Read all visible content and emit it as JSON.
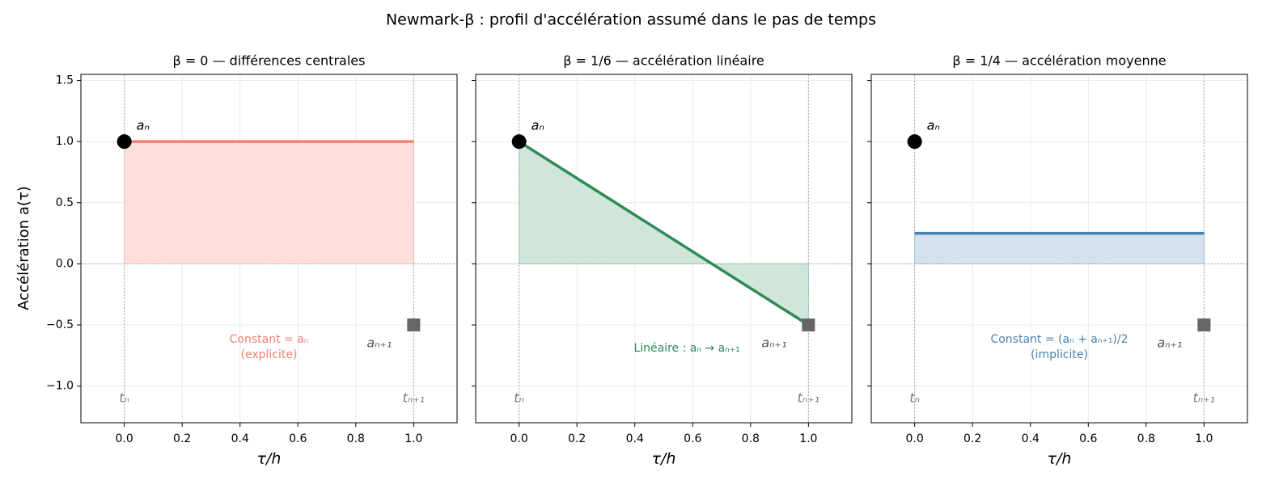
{
  "title": "Newmark-β : profil d'accélération assumé dans le pas de temps",
  "chart_data": [
    {
      "type": "line",
      "title": "β = 0 — différences centrales",
      "xlabel": "τ/h",
      "ylabel": "Accélération a(τ)",
      "x": [
        0,
        1
      ],
      "values": [
        1,
        1
      ],
      "color": "#f08070",
      "fill_color": "#fde0dc",
      "xlim": [
        -0.15,
        1.15
      ],
      "ylim": [
        -1.3,
        1.55
      ],
      "xticks": [
        {
          "value": 0,
          "label": "0.0"
        },
        0.2,
        0.4,
        0.6,
        0.8,
        {
          "value": 1,
          "label": "1.0"
        }
      ],
      "yticks": [
        {
          "value": -1,
          "label": "−1.0"
        },
        {
          "value": -0.5,
          "label": "−0.5"
        },
        {
          "value": 0,
          "label": "0.0"
        },
        0.5,
        {
          "value": 1,
          "label": "1.0"
        },
        1.5
      ],
      "grid": true,
      "points": [
        {
          "label": "aₙ",
          "x": 0,
          "y": 1,
          "marker": "circle",
          "color": "#000000"
        },
        {
          "label": "aₙ₊₁",
          "x": 1,
          "y": -0.5,
          "marker": "square",
          "color": "#666666"
        }
      ],
      "time_labels": [
        {
          "text": "tₙ",
          "x": 0,
          "y": -1.1
        },
        {
          "text": "tₙ₊₁",
          "x": 1,
          "y": -1.1
        }
      ],
      "annotation": {
        "lines": [
          "Constant  = aₙ",
          "(explicite)"
        ],
        "x": 0.5,
        "y": -0.62
      }
    },
    {
      "type": "line",
      "title": "β = 1/6 — accélération linéaire",
      "xlabel": "τ/h",
      "x": [
        0,
        1
      ],
      "values": [
        1,
        -0.5
      ],
      "color": "#2e8b57",
      "fill_color": "#d0e6d9",
      "xlim": [
        -0.15,
        1.15
      ],
      "ylim": [
        -1.3,
        1.55
      ],
      "xticks": [
        {
          "value": 0,
          "label": "0.0"
        },
        0.2,
        0.4,
        0.6,
        0.8,
        {
          "value": 1,
          "label": "1.0"
        }
      ],
      "yticks": [
        -1,
        -0.5,
        0,
        0.5,
        1,
        1.5
      ],
      "ytick_labels": false,
      "grid": true,
      "points": [
        {
          "label": "aₙ",
          "x": 0,
          "y": 1,
          "marker": "circle",
          "color": "#000000"
        },
        {
          "label": "aₙ₊₁",
          "x": 1,
          "y": -0.5,
          "marker": "square",
          "color": "#666666"
        }
      ],
      "time_labels": [
        {
          "text": "tₙ",
          "x": 0,
          "y": -1.1
        },
        {
          "text": "tₙ₊₁",
          "x": 1,
          "y": -1.1
        }
      ],
      "annotation": {
        "lines": [
          "Linéaire : aₙ → aₙ₊₁"
        ],
        "x": 0.58,
        "y": -0.69
      }
    },
    {
      "type": "line",
      "title": "β = 1/4 — accélération moyenne",
      "xlabel": "τ/h",
      "x": [
        0,
        1
      ],
      "values": [
        0.25,
        0.25
      ],
      "color": "#4682b4",
      "fill_color": "#d5e1ee",
      "xlim": [
        -0.15,
        1.15
      ],
      "ylim": [
        -1.3,
        1.55
      ],
      "xticks": [
        {
          "value": 0,
          "label": "0.0"
        },
        0.2,
        0.4,
        0.6,
        0.8,
        {
          "value": 1,
          "label": "1.0"
        }
      ],
      "yticks": [
        -1,
        -0.5,
        0,
        0.5,
        1,
        1.5
      ],
      "ytick_labels": false,
      "grid": true,
      "points": [
        {
          "label": "aₙ",
          "x": 0,
          "y": 1,
          "marker": "circle",
          "color": "#000000"
        },
        {
          "label": "aₙ₊₁",
          "x": 1,
          "y": -0.5,
          "marker": "square",
          "color": "#666666"
        }
      ],
      "time_labels": [
        {
          "text": "tₙ",
          "x": 0,
          "y": -1.1
        },
        {
          "text": "tₙ₊₁",
          "x": 1,
          "y": -1.1
        }
      ],
      "annotation": {
        "lines": [
          "Constant  = (aₙ + aₙ₊₁)/2",
          "(implicite)"
        ],
        "x": 0.5,
        "y": -0.62
      }
    }
  ]
}
